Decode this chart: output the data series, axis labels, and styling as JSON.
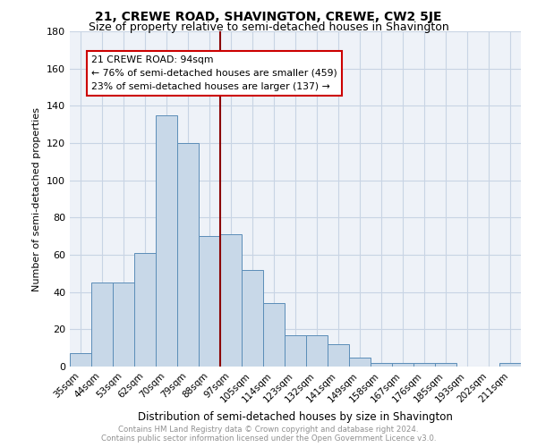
{
  "title": "21, CREWE ROAD, SHAVINGTON, CREWE, CW2 5JE",
  "subtitle": "Size of property relative to semi-detached houses in Shavington",
  "xlabel": "Distribution of semi-detached houses by size in Shavington",
  "ylabel": "Number of semi-detached properties",
  "footer_line1": "Contains HM Land Registry data © Crown copyright and database right 2024.",
  "footer_line2": "Contains public sector information licensed under the Open Government Licence v3.0.",
  "categories": [
    "35sqm",
    "44sqm",
    "53sqm",
    "62sqm",
    "70sqm",
    "79sqm",
    "88sqm",
    "97sqm",
    "105sqm",
    "114sqm",
    "123sqm",
    "132sqm",
    "141sqm",
    "149sqm",
    "158sqm",
    "167sqm",
    "176sqm",
    "185sqm",
    "193sqm",
    "202sqm",
    "211sqm"
  ],
  "values": [
    7,
    45,
    45,
    61,
    135,
    120,
    70,
    71,
    52,
    34,
    17,
    17,
    12,
    5,
    2,
    2,
    2,
    2,
    0,
    0,
    2
  ],
  "bar_color": "#c8d8e8",
  "bar_edge_color": "#5b8db8",
  "property_line_label": "21 CREWE ROAD: 94sqm",
  "pct_smaller": "76%",
  "count_smaller": 459,
  "pct_larger": "23%",
  "count_larger": 137,
  "annotation_box_color": "#ffffff",
  "annotation_box_edge": "#cc0000",
  "vline_color": "#8b0000",
  "vline_x": 6.5,
  "ylim": [
    0,
    180
  ],
  "yticks": [
    0,
    20,
    40,
    60,
    80,
    100,
    120,
    140,
    160,
    180
  ],
  "grid_color": "#c8d4e4",
  "bg_color": "#eef2f8",
  "title_fontsize": 10,
  "subtitle_fontsize": 9,
  "ylabel_text": "Number of semi-detached properties"
}
